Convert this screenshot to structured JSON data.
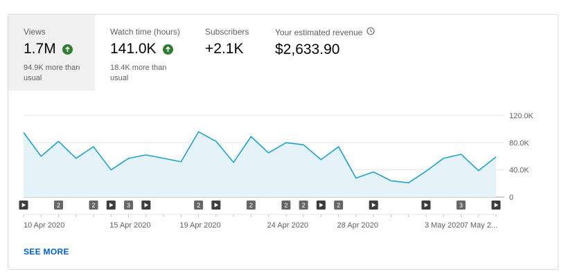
{
  "metrics": [
    {
      "label": "Views",
      "value": "1.7M",
      "trend": "up",
      "note": "94.9K more than usual",
      "active": true
    },
    {
      "label": "Watch time (hours)",
      "value": "141.0K",
      "trend": "up",
      "note": "18.4K more than usual",
      "active": false
    },
    {
      "label": "Subscribers",
      "value": "+2.1K",
      "trend": "",
      "note": "",
      "active": false
    },
    {
      "label": "Your estimated revenue",
      "value": "$2,633.90",
      "trend": "",
      "note": "",
      "active": false,
      "info_icon": "clock-icon"
    }
  ],
  "see_more_label": "SEE MORE",
  "colors": {
    "line": "#1fa1c9",
    "fill": "#e4f3f8",
    "grid": "#e5e5e5",
    "trend_up": "#2e7d32",
    "link": "#065fd4"
  },
  "chart_data": {
    "type": "area",
    "y_ticks": [
      "120.0K",
      "80.0K",
      "40.0K",
      "0"
    ],
    "ylim": [
      0,
      120000
    ],
    "values": [
      95000,
      60000,
      82000,
      57000,
      74000,
      40000,
      57000,
      62000,
      57000,
      52000,
      96000,
      82000,
      51000,
      89000,
      65000,
      80000,
      77000,
      55000,
      74000,
      28000,
      37000,
      24000,
      21000,
      38000,
      57000,
      63000,
      39000,
      59000
    ],
    "x_labels": [
      {
        "index": 0,
        "label": "10 Apr 2020"
      },
      {
        "index": 5,
        "label": "15 Apr 2020"
      },
      {
        "index": 9,
        "label": "19 Apr 2020"
      },
      {
        "index": 14,
        "label": "24 Apr 2020"
      },
      {
        "index": 18,
        "label": "28 Apr 2020"
      },
      {
        "index": 23,
        "label": "3 May 2020"
      },
      {
        "index": 27,
        "label": "7 May 2..."
      }
    ],
    "markers": [
      {
        "index": 0,
        "kind": "play"
      },
      {
        "index": 2,
        "kind": "count",
        "label": "2"
      },
      {
        "index": 4,
        "kind": "count",
        "label": "2"
      },
      {
        "index": 5,
        "kind": "play"
      },
      {
        "index": 6,
        "kind": "count",
        "label": "3"
      },
      {
        "index": 7,
        "kind": "play"
      },
      {
        "index": 10,
        "kind": "count",
        "label": "2"
      },
      {
        "index": 11,
        "kind": "play"
      },
      {
        "index": 13,
        "kind": "count",
        "label": "2"
      },
      {
        "index": 15,
        "kind": "count",
        "label": "2"
      },
      {
        "index": 16,
        "kind": "count",
        "label": "2"
      },
      {
        "index": 17,
        "kind": "play"
      },
      {
        "index": 18,
        "kind": "count",
        "label": "2"
      },
      {
        "index": 20,
        "kind": "play"
      },
      {
        "index": 23,
        "kind": "play"
      },
      {
        "index": 25,
        "kind": "count",
        "label": "3"
      },
      {
        "index": 27,
        "kind": "play"
      }
    ]
  }
}
